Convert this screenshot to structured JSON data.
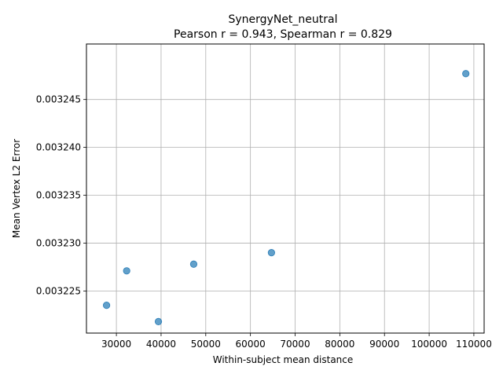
{
  "chart_data": {
    "type": "scatter",
    "title": "SynergyNet_neutral",
    "subtitle": "Pearson r = 0.943, Spearman r = 0.829",
    "xlabel": "Within-subject mean distance",
    "ylabel": "Mean Vertex L2 Error",
    "xlim": [
      23300,
      112300
    ],
    "ylim": [
      0.0032206,
      0.0032508
    ],
    "x_ticks": [
      30000,
      40000,
      50000,
      60000,
      70000,
      80000,
      90000,
      100000,
      110000
    ],
    "x_tick_labels": [
      "30000",
      "40000",
      "50000",
      "60000",
      "70000",
      "80000",
      "90000",
      "100000",
      "110000"
    ],
    "y_ticks": [
      0.003225,
      0.00323,
      0.003235,
      0.00324,
      0.003245
    ],
    "y_tick_labels": [
      "0.003225",
      "0.003230",
      "0.003235",
      "0.003240",
      "0.003245"
    ],
    "grid": true,
    "marker_color": "#1f77b4",
    "points": [
      {
        "x": 27800,
        "y": 0.0032235
      },
      {
        "x": 32300,
        "y": 0.0032271
      },
      {
        "x": 39400,
        "y": 0.0032218
      },
      {
        "x": 47300,
        "y": 0.0032278
      },
      {
        "x": 64700,
        "y": 0.003229
      },
      {
        "x": 108200,
        "y": 0.0032477
      }
    ]
  }
}
